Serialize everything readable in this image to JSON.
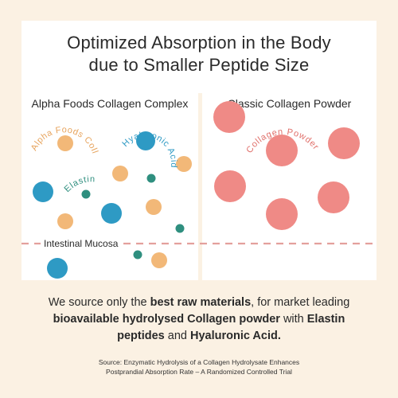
{
  "title": {
    "line1": "Optimized Absorption in the Body",
    "line2": "due to Smaller Peptide Size"
  },
  "left_panel": {
    "heading": "Alpha Foods Collagen Complex",
    "labels": {
      "collagen": "Alpha Foods Collagen",
      "hyaluronic": "Hyaluronic Acid",
      "elastin": "Elastin"
    },
    "mucosa_label": "Intestinal Mucosa"
  },
  "right_panel": {
    "heading": "Classic Collagen Powder",
    "labels": {
      "collagen": "Collagen Powder"
    }
  },
  "body": {
    "part1": "We source only the ",
    "bold1": "best raw materials",
    "part2": ", for market leading ",
    "bold2": "bioavailable hydrolysed Collagen powder",
    "part3": " with ",
    "bold3": "Elastin peptides",
    "part4": " and ",
    "bold4": "Hyaluronic Acid."
  },
  "source": {
    "line1": "Source: Enzymatic Hydrolysis of a Collagen Hydrolysate Enhances",
    "line2": "Postprandial Absorption Rate – A Randomized Controlled Trial"
  },
  "colors": {
    "background": "#fbf1e3",
    "collagen_small": "#f2b878",
    "hyaluronic": "#2e9ac4",
    "elastin": "#2f8f7f",
    "collagen_large": "#ef8a86",
    "mucosa_line": "#e3a09c"
  }
}
